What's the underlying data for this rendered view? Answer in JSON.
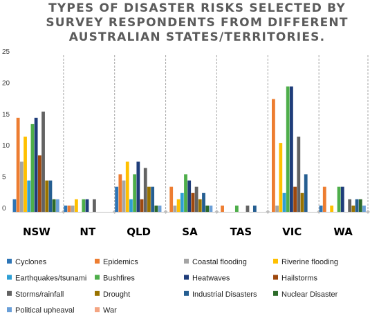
{
  "chart_data": {
    "type": "bar",
    "title_lines": [
      "TYPES OF DISASTER RISKS SELECTED BY",
      "SURVEY RESPONDENTS FROM DIFFERENT",
      "AUSTRALIAN STATES/TERRITORIES."
    ],
    "xlabel": "",
    "ylabel": "",
    "ylim": [
      0,
      25
    ],
    "yticks": [
      0,
      5,
      10,
      15,
      20,
      25
    ],
    "grid": false,
    "legend_position": "bottom",
    "categories": [
      "NSW",
      "NT",
      "QLD",
      "SA",
      "TAS",
      "VIC",
      "WA"
    ],
    "series": [
      {
        "name": "Cyclones",
        "color": "#2e75b6",
        "values": [
          2,
          1,
          4,
          0,
          0,
          0,
          1
        ]
      },
      {
        "name": "Epidemics",
        "color": "#ed7d31",
        "values": [
          15,
          1,
          6,
          4,
          1,
          18,
          4
        ]
      },
      {
        "name": "Coastal flooding",
        "color": "#a5a5a5",
        "values": [
          8,
          1,
          5,
          1,
          0,
          1,
          0
        ]
      },
      {
        "name": "Riverine flooding",
        "color": "#ffc000",
        "values": [
          12,
          2,
          8,
          2,
          0,
          11,
          1
        ]
      },
      {
        "name": "Earthquakes/tsunami",
        "color": "#2e9fd4",
        "values": [
          5,
          0,
          2,
          3,
          0,
          3,
          0
        ]
      },
      {
        "name": "Bushfires",
        "color": "#4eae4a",
        "values": [
          14,
          2,
          6,
          6,
          1,
          20,
          4
        ]
      },
      {
        "name": "Heatwaves",
        "color": "#1f3d7a",
        "values": [
          15,
          2,
          8,
          5,
          0,
          20,
          4
        ]
      },
      {
        "name": "Hailstorms",
        "color": "#9e480e",
        "values": [
          9,
          0,
          2,
          3,
          0,
          4,
          0
        ]
      },
      {
        "name": "Storms/rainfall",
        "color": "#636363",
        "values": [
          16,
          2,
          7,
          4,
          1,
          12,
          2
        ]
      },
      {
        "name": "Drought",
        "color": "#997300",
        "values": [
          5,
          0,
          4,
          2,
          0,
          3,
          1
        ]
      },
      {
        "name": "Industrial Disasters",
        "color": "#255e91",
        "values": [
          5,
          0,
          4,
          3,
          1,
          6,
          2
        ]
      },
      {
        "name": "Nuclear Disaster",
        "color": "#2d6b2a",
        "values": [
          2,
          0,
          1,
          1,
          0,
          0,
          2
        ]
      },
      {
        "name": "Political upheaval",
        "color": "#6a9fd8",
        "values": [
          2,
          0,
          1,
          1,
          0,
          0,
          1
        ]
      },
      {
        "name": "War",
        "color": "#f4a582",
        "values": [
          0,
          0,
          0,
          0,
          0,
          0,
          0
        ]
      }
    ]
  }
}
